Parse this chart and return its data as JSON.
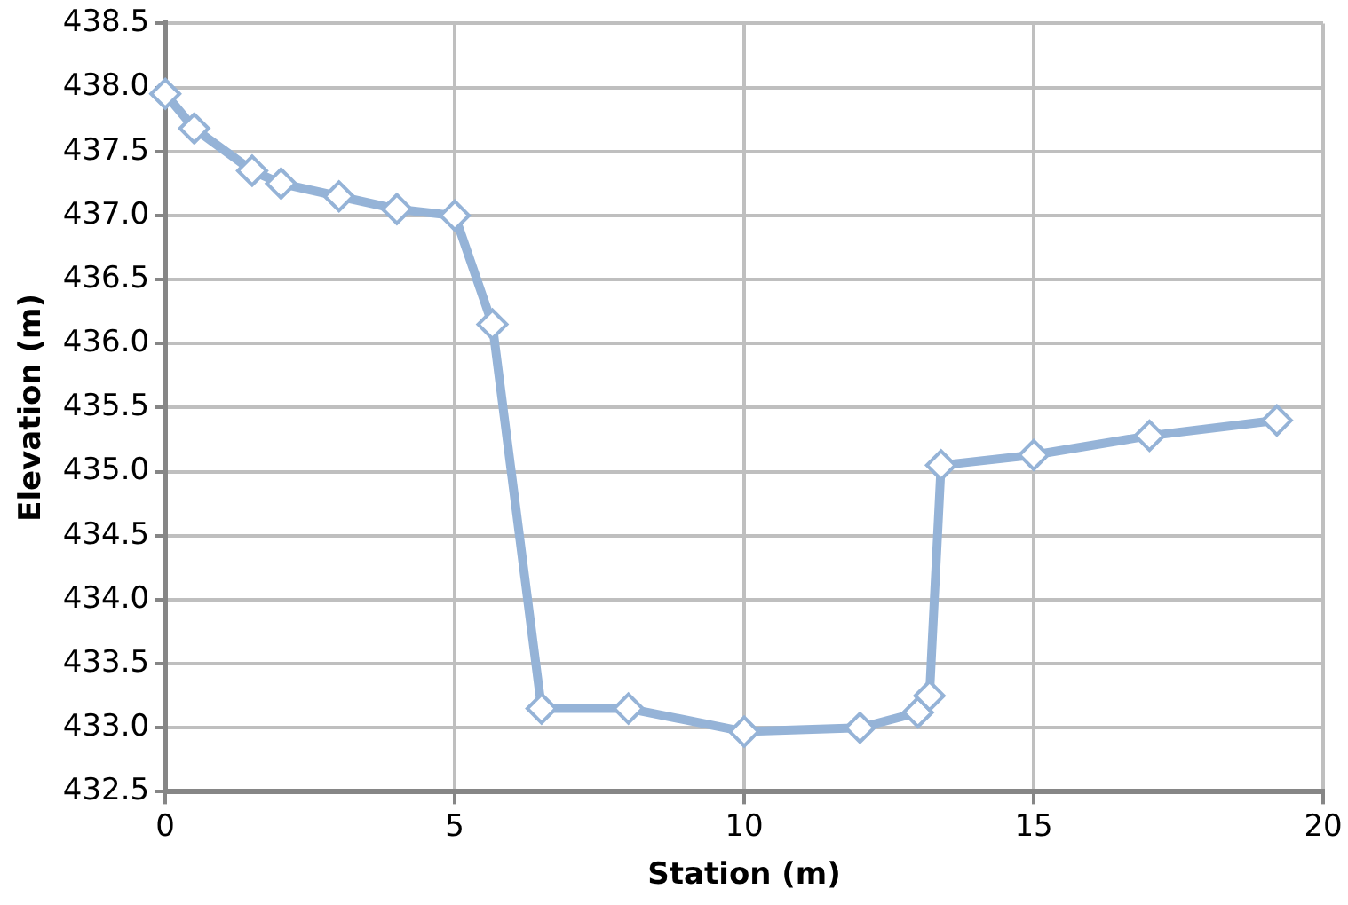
{
  "chart_data": {
    "type": "line",
    "xlabel": "Station (m)",
    "ylabel": "Elevation (m)",
    "x": [
      0,
      0.5,
      1.5,
      2,
      3,
      4,
      5,
      5.65,
      6.5,
      8,
      10,
      12,
      13,
      13.2,
      13.4,
      15,
      17,
      19.2
    ],
    "series": [
      {
        "color": "#95b3d7",
        "values": [
          437.95,
          437.68,
          437.35,
          437.25,
          437.15,
          437.05,
          437.0,
          436.15,
          433.15,
          433.15,
          432.97,
          433.0,
          433.12,
          433.25,
          435.05,
          435.13,
          435.28,
          435.4
        ]
      }
    ],
    "xlim": [
      0,
      20
    ],
    "xticks": [
      0,
      5,
      10,
      15,
      20
    ],
    "ylim": [
      432.5,
      438.5
    ],
    "yticks": [
      {
        "value": 432.5,
        "label": "432.5"
      },
      {
        "value": 433,
        "label": "433.0"
      },
      {
        "value": 433.5,
        "label": "433.5"
      },
      {
        "value": 434,
        "label": "434.0"
      },
      {
        "value": 434.5,
        "label": "434.5"
      },
      {
        "value": 435,
        "label": "435.0"
      },
      {
        "value": 435.5,
        "label": "435.5"
      },
      {
        "value": 436,
        "label": "436.0"
      },
      {
        "value": 436.5,
        "label": "436.5"
      },
      {
        "value": 437,
        "label": "437.0"
      },
      {
        "value": 437.5,
        "label": "437.5"
      },
      {
        "value": 438,
        "label": "438.0"
      },
      {
        "value": 438.5,
        "label": "438.5"
      }
    ],
    "grid": true,
    "marker": "diamond",
    "line_style": "solid"
  }
}
